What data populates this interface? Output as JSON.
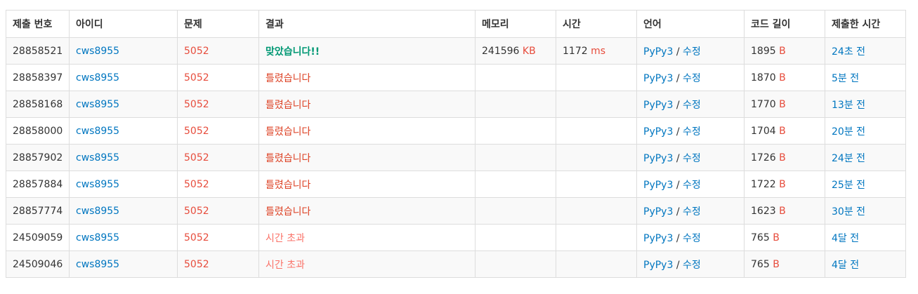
{
  "headers": [
    "제출 번호",
    "아이디",
    "문제",
    "결과",
    "메모리",
    "시간",
    "언어",
    "코드 길이",
    "제출한 시간"
  ],
  "units": {
    "memory": "KB",
    "time": "ms",
    "code": "B"
  },
  "edit_label": "수정",
  "lang_sep": "/",
  "colors": {
    "link": "#0076c0",
    "problem": "#e74c3c",
    "accepted": "#009874",
    "wrong": "#dd4124",
    "timeout": "#fa7268"
  },
  "rows": [
    {
      "id": "28858521",
      "user": "cws8955",
      "problem": "5052",
      "result": "맞았습니다!!",
      "result_type": "ac",
      "memory": "241596",
      "time": "1172",
      "lang": "PyPy3",
      "length": "1895",
      "submitted": "24초 전"
    },
    {
      "id": "28858397",
      "user": "cws8955",
      "problem": "5052",
      "result": "틀렸습니다",
      "result_type": "wa",
      "memory": "",
      "time": "",
      "lang": "PyPy3",
      "length": "1870",
      "submitted": "5분 전"
    },
    {
      "id": "28858168",
      "user": "cws8955",
      "problem": "5052",
      "result": "틀렸습니다",
      "result_type": "wa",
      "memory": "",
      "time": "",
      "lang": "PyPy3",
      "length": "1770",
      "submitted": "13분 전"
    },
    {
      "id": "28858000",
      "user": "cws8955",
      "problem": "5052",
      "result": "틀렸습니다",
      "result_type": "wa",
      "memory": "",
      "time": "",
      "lang": "PyPy3",
      "length": "1704",
      "submitted": "20분 전"
    },
    {
      "id": "28857902",
      "user": "cws8955",
      "problem": "5052",
      "result": "틀렸습니다",
      "result_type": "wa",
      "memory": "",
      "time": "",
      "lang": "PyPy3",
      "length": "1726",
      "submitted": "24분 전"
    },
    {
      "id": "28857884",
      "user": "cws8955",
      "problem": "5052",
      "result": "틀렸습니다",
      "result_type": "wa",
      "memory": "",
      "time": "",
      "lang": "PyPy3",
      "length": "1722",
      "submitted": "25분 전"
    },
    {
      "id": "28857774",
      "user": "cws8955",
      "problem": "5052",
      "result": "틀렸습니다",
      "result_type": "wa",
      "memory": "",
      "time": "",
      "lang": "PyPy3",
      "length": "1623",
      "submitted": "30분 전"
    },
    {
      "id": "24509059",
      "user": "cws8955",
      "problem": "5052",
      "result": "시간 초과",
      "result_type": "tle",
      "memory": "",
      "time": "",
      "lang": "PyPy3",
      "length": "765",
      "submitted": "4달 전"
    },
    {
      "id": "24509046",
      "user": "cws8955",
      "problem": "5052",
      "result": "시간 초과",
      "result_type": "tle",
      "memory": "",
      "time": "",
      "lang": "PyPy3",
      "length": "765",
      "submitted": "4달 전"
    }
  ]
}
